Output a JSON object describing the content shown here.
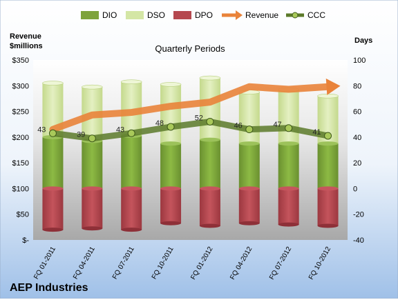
{
  "company": "AEP Industries",
  "chart_data": {
    "type": "bar",
    "title": "Quarterly Periods",
    "left_axis_title_lines": [
      "Revenue",
      "$millions"
    ],
    "right_axis_title": "Days",
    "categories": [
      "FQ 01-2011",
      "FQ 04-2011",
      "FQ 07-2011",
      "FQ 10-2011",
      "FQ 01-2012",
      "FQ 04-2012",
      "FQ 07-2012",
      "FQ 10-2012"
    ],
    "left_axis": {
      "min": 0,
      "max": 350,
      "step": 50,
      "tick_labels": [
        "$-",
        "$50",
        "$100",
        "$150",
        "$200",
        "$250",
        "$300",
        "$350"
      ]
    },
    "right_axis": {
      "min": -40,
      "max": 100,
      "step": 20,
      "tick_labels": [
        "-40",
        "-20",
        "0",
        "20",
        "40",
        "60",
        "80",
        "100"
      ]
    },
    "legend_position": "top",
    "series": [
      {
        "name": "DIO",
        "kind": "bar-stack",
        "axis": "right",
        "color": "#7ea33c",
        "values": [
          40,
          37,
          41,
          35,
          38,
          35,
          35,
          35
        ]
      },
      {
        "name": "DSO",
        "kind": "bar-stack",
        "axis": "right",
        "color": "#d4e6a5",
        "values": [
          42,
          42,
          42,
          46,
          48,
          40,
          42,
          37
        ]
      },
      {
        "name": "DPO",
        "kind": "bar-negative",
        "axis": "right",
        "color": "#b5484f",
        "values": [
          -32,
          -31,
          -32,
          -27,
          -29,
          -27,
          -28,
          -29
        ]
      },
      {
        "name": "Revenue",
        "kind": "line-arrow",
        "axis": "left",
        "color": "#e9833a",
        "values": [
          215,
          243,
          248,
          260,
          268,
          298,
          293,
          298
        ]
      },
      {
        "name": "CCC",
        "kind": "line-markers",
        "axis": "right",
        "color": "#5c7a2a",
        "values": [
          43,
          39,
          43,
          48,
          52,
          46,
          47,
          41
        ],
        "labels": [
          "43",
          "39",
          "43",
          "48",
          "52",
          "46",
          "47",
          "41"
        ]
      }
    ]
  }
}
